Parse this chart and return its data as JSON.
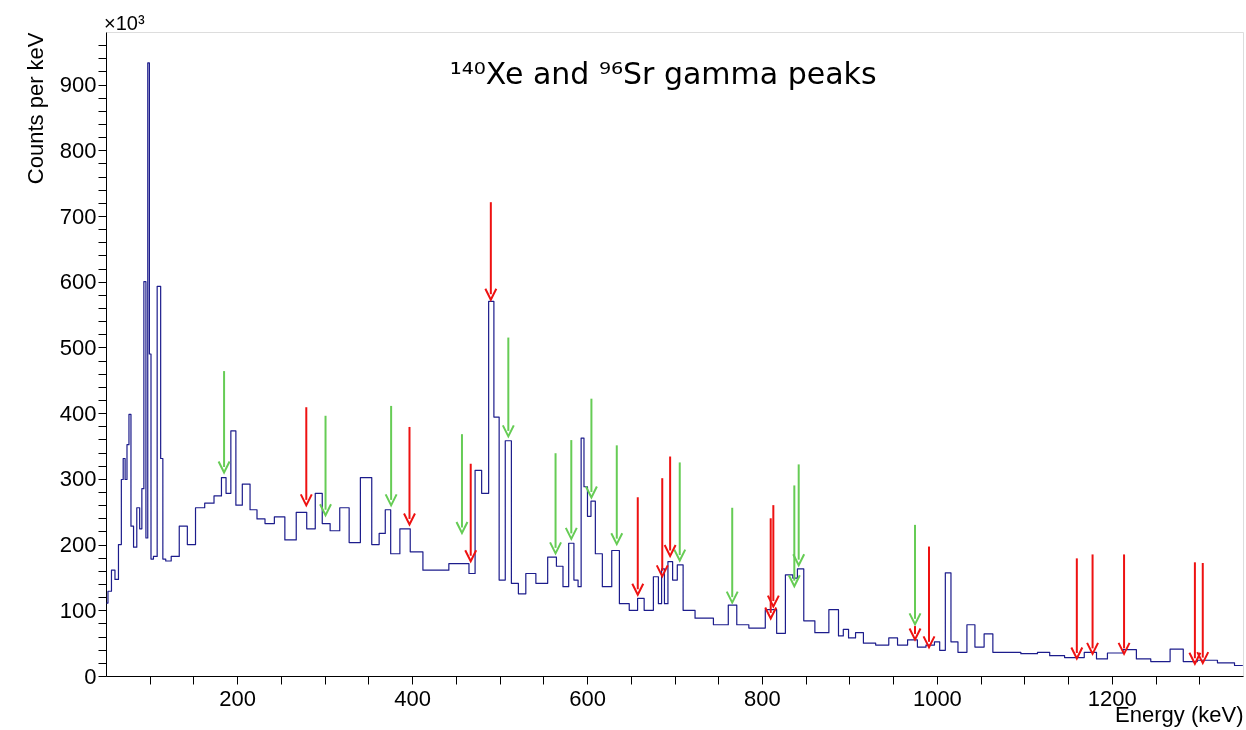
{
  "chart_data": {
    "type": "step",
    "title": "¹⁴⁰Xe and ⁹⁶Sr gamma peaks",
    "xlabel": "Energy (keV)",
    "ylabel": "Counts per keV",
    "annotations": [
      "×10³"
    ],
    "xlim": [
      50,
      1350
    ],
    "ylim": [
      0,
      980
    ],
    "xticks": [
      {
        "value": 100,
        "label": null
      },
      {
        "value": 150,
        "label": null
      },
      200,
      {
        "value": 250,
        "label": null
      },
      {
        "value": 300,
        "label": null
      },
      {
        "value": 350,
        "label": null
      },
      400,
      {
        "value": 450,
        "label": null
      },
      {
        "value": 500,
        "label": null
      },
      {
        "value": 550,
        "label": null
      },
      600,
      {
        "value": 650,
        "label": null
      },
      {
        "value": 700,
        "label": null
      },
      {
        "value": 750,
        "label": null
      },
      800,
      {
        "value": 850,
        "label": null
      },
      {
        "value": 900,
        "label": null
      },
      {
        "value": 950,
        "label": null
      },
      1000,
      {
        "value": 1050,
        "label": null
      },
      {
        "value": 1100,
        "label": null
      },
      {
        "value": 1150,
        "label": null
      },
      1200,
      {
        "value": 1250,
        "label": null
      },
      {
        "value": 1300,
        "label": null
      }
    ],
    "yticks": [
      0,
      {
        "value": 20,
        "label": null
      },
      {
        "value": 40,
        "label": null
      },
      {
        "value": 60,
        "label": null
      },
      {
        "value": 80,
        "label": null
      },
      100,
      {
        "value": 120,
        "label": null
      },
      {
        "value": 140,
        "label": null
      },
      {
        "value": 160,
        "label": null
      },
      {
        "value": 180,
        "label": null
      },
      200,
      {
        "value": 220,
        "label": null
      },
      {
        "value": 240,
        "label": null
      },
      {
        "value": 260,
        "label": null
      },
      {
        "value": 280,
        "label": null
      },
      300,
      {
        "value": 320,
        "label": null
      },
      {
        "value": 340,
        "label": null
      },
      {
        "value": 360,
        "label": null
      },
      {
        "value": 380,
        "label": null
      },
      400,
      {
        "value": 420,
        "label": null
      },
      {
        "value": 440,
        "label": null
      },
      {
        "value": 460,
        "label": null
      },
      {
        "value": 480,
        "label": null
      },
      500,
      {
        "value": 520,
        "label": null
      },
      {
        "value": 540,
        "label": null
      },
      {
        "value": 560,
        "label": null
      },
      {
        "value": 580,
        "label": null
      },
      600,
      {
        "value": 620,
        "label": null
      },
      {
        "value": 640,
        "label": null
      },
      {
        "value": 660,
        "label": null
      },
      {
        "value": 680,
        "label": null
      },
      700,
      {
        "value": 720,
        "label": null
      },
      {
        "value": 740,
        "label": null
      },
      {
        "value": 760,
        "label": null
      },
      {
        "value": 780,
        "label": null
      },
      800,
      {
        "value": 820,
        "label": null
      },
      {
        "value": 840,
        "label": null
      },
      {
        "value": 860,
        "label": null
      },
      {
        "value": 880,
        "label": null
      },
      900,
      {
        "value": 920,
        "label": null
      },
      {
        "value": 940,
        "label": null
      },
      {
        "value": 960,
        "label": null
      }
    ],
    "grid": false,
    "series": [
      {
        "color": "#1c1c8c",
        "x": [
          50.5,
          54,
          58.5,
          62,
          66.5,
          68.6,
          70.7,
          73,
          75,
          77.5,
          79.6,
          83.4,
          87,
          90,
          92,
          94.6,
          96.7,
          98.8,
          100.4,
          102.5,
          106,
          111,
          114,
          116,
          120.6,
          128.5,
          139,
          147,
          157.7,
          168,
          179,
          185,
          189.5,
          196,
          201,
          210.7,
          218.7,
          226.6,
          237,
          248,
          261,
          274,
          285,
          293.5,
          301,
          311.5,
          323,
          333,
          348.7,
          359,
          365.6,
          373,
          378,
          394,
          401.7,
          423,
          461,
          469,
          475,
          484,
          491,
          496,
          503,
          510,
          517,
          526,
          534,
          549,
          561,
          569,
          576,
          582,
          588,
          591.5,
          595,
          598,
          603,
          606,
          613,
          622,
          634.5,
          639.5,
          657,
          658.6,
          672,
          679.7,
          683.5,
          687,
          690,
          695,
          700.7,
          705.7,
          714,
          733,
          756,
          767,
          775.4,
          794.6,
          813,
          820.6,
          833,
          837.5,
          843.6,
          852,
          869,
          884,
          891,
          895,
          903,
          911,
          921,
          939,
          951,
          959,
          974,
          981.5,
          993.6,
          1000.8,
          1005.6,
          1013.7,
          1018.5,
          1029.7,
          1039,
          1048,
          1060,
          1068,
          1086,
          1106,
          1124,
          1134,
          1158,
          1179,
          1186,
          1204,
          1221.7,
          1234.5,
          1254.6,
          1278.7,
          1284.7,
          1310.8,
          1330.8,
          1349.8
        ],
        "values": [
          111,
          129,
          161,
          147,
          200,
          299,
          331,
          299,
          352,
          398,
          228,
          196,
          256,
          224,
          285,
          600,
          210,
          933,
          490,
          178,
          182,
          593,
          331,
          178,
          175,
          182,
          228,
          200,
          256,
          263,
          274,
          302,
          278,
          373,
          260,
          292,
          253,
          239,
          232,
          242,
          207,
          249,
          224,
          278,
          232,
          221,
          256,
          203,
          302,
          200,
          217,
          253,
          186,
          224,
          189,
          161,
          171,
          156,
          313,
          278,
          570,
          394,
          146,
          358,
          141,
          125,
          156,
          141,
          181,
          167,
          136,
          202,
          146,
          136,
          362,
          288,
          243,
          266,
          186,
          136,
          191,
          110,
          100,
          118,
          100,
          151,
          110,
          163,
          110,
          174,
          146,
          169,
          100,
          88,
          78,
          108,
          78,
          73,
          101,
          65,
          154,
          149,
          163,
          84,
          66,
          101,
          61,
          71,
          58,
          66,
          50,
          47,
          58,
          47,
          55,
          44,
          47,
          52,
          39,
          157,
          52,
          36,
          78,
          44,
          64,
          36,
          36,
          34,
          36,
          31,
          28,
          36,
          26,
          35,
          40,
          26,
          22,
          41,
          22,
          24,
          20,
          16
        ]
      },
      {
        "type": "scatter",
        "color": "#66cc55",
        "x": [
          185,
          301,
          376,
          457,
          510,
          564,
          582,
          605,
          634,
          706,
          766,
          837,
          842,
          975
        ],
        "values": [
          318,
          253,
          268,
          226,
          373,
          195,
          217,
          280,
          209,
          184,
          120,
          145,
          177,
          87
        ],
        "errors": [
          [
            318,
            464
          ],
          [
            253,
            396
          ],
          [
            268,
            411
          ],
          [
            226,
            368
          ],
          [
            373,
            515
          ],
          [
            195,
            339
          ],
          [
            217,
            359
          ],
          [
            280,
            422
          ],
          [
            209,
            351
          ],
          [
            184,
            325
          ],
          [
            120,
            256
          ],
          [
            145,
            290
          ],
          [
            177,
            322
          ],
          [
            87,
            230
          ]
        ]
      },
      {
        "type": "scatter",
        "color": "#ee1111",
        "x": [
          279,
          397,
          467,
          490,
          658,
          686,
          695,
          810,
          813,
          975,
          991,
          1160,
          1178,
          1214,
          1295,
          1304
        ],
        "values": [
          268,
          239,
          183,
          581,
          132,
          160,
          191,
          96,
          114,
          64,
          52,
          35,
          42,
          42,
          27,
          28
        ],
        "errors": [
          [
            268,
            409
          ],
          [
            239,
            379
          ],
          [
            183,
            323
          ],
          [
            581,
            721
          ],
          [
            132,
            272
          ],
          [
            160,
            301
          ],
          [
            191,
            334
          ],
          [
            96,
            240
          ],
          [
            114,
            260
          ],
          [
            64,
            76
          ],
          [
            52,
            197
          ],
          [
            35,
            179
          ],
          [
            42,
            185
          ],
          [
            42,
            185
          ],
          [
            27,
            173
          ],
          [
            28,
            172
          ]
        ]
      }
    ]
  }
}
